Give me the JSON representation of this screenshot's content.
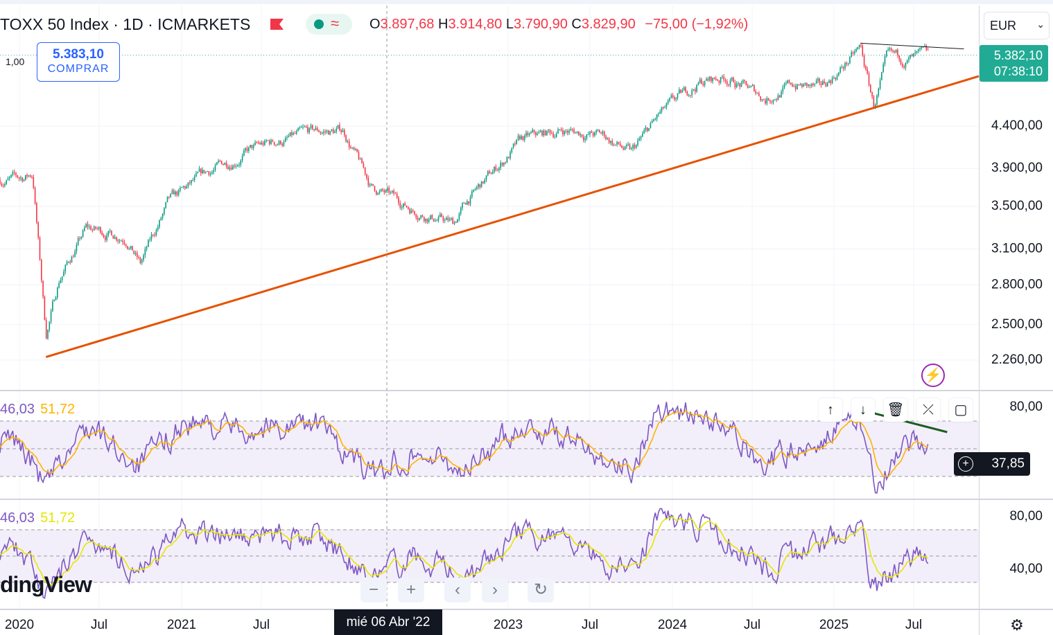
{
  "header": {
    "symbol": "TOXX 50 Index · 1D · ICMARKETS",
    "ohlc": [
      {
        "k": "O",
        "v": "3.897,68"
      },
      {
        "k": "H",
        "v": "3.914,80"
      },
      {
        "k": "L",
        "v": "3.790,90"
      },
      {
        "k": "C",
        "v": "3.829,90"
      }
    ],
    "change": "−75,00 (−1,92%)"
  },
  "scale_badge": "1,00",
  "buy_button": {
    "price": "5.383,10",
    "label": "COMPRAR"
  },
  "currency": {
    "label": "EUR",
    "caret": "⌄"
  },
  "last_price": {
    "price": "5.382,10",
    "countdown": "07:38:10"
  },
  "rsi_value_badge": "37,85",
  "pane1_labels": {
    "a": "46,03",
    "b": "51,72"
  },
  "pane2_labels": {
    "a": "46,03",
    "b": "51,72"
  },
  "watermark": "dingView",
  "crosshair_date": "mié 06 Abr '22",
  "toolbar_icons": [
    "arrow-up-icon",
    "arrow-down-icon",
    "trash-icon",
    "collapse-icon",
    "maximize-icon"
  ],
  "colors": {
    "up": "#089981",
    "down": "#f23645",
    "trendline": "#e65100",
    "rsi": "#7e57c2",
    "rsi_ma1": "#ffb300",
    "rsi_ma2": "#e6e600",
    "rsi_band": "#f3effa",
    "last_price": "#22ab94"
  },
  "chart_data": [
    {
      "type": "candlestick",
      "symbol": "TOXX 50 Index",
      "interval": "1D",
      "x_ticks": [
        "2020",
        "Jul",
        "2021",
        "Jul",
        "2023",
        "Jul",
        "2024",
        "Jul",
        "2025",
        "Jul"
      ],
      "y_ticks": [
        "2.260,00",
        "2.500,00",
        "2.800,00",
        "3.100,00",
        "3.500,00",
        "3.900,00",
        "4.400,00"
      ],
      "ylim": [
        2150,
        5900
      ],
      "y_scale": "log",
      "x": [
        "2020-01",
        "2020-02",
        "2020-03",
        "2020-04",
        "2020-06",
        "2020-09",
        "2020-10",
        "2020-12",
        "2021-03",
        "2021-06",
        "2021-08",
        "2021-11",
        "2022-01",
        "2022-03",
        "2022-06",
        "2022-09",
        "2022-10",
        "2023-02",
        "2023-05",
        "2023-08",
        "2023-10",
        "2023-12",
        "2024-03",
        "2024-05",
        "2024-08",
        "2024-10",
        "2024-12",
        "2025-03",
        "2025-04",
        "2025-05",
        "2025-08"
      ],
      "close": [
        3780,
        3840,
        2430,
        2850,
        3280,
        3220,
        2970,
        3520,
        3850,
        4100,
        4200,
        4320,
        4340,
        3700,
        3480,
        3330,
        3550,
        4220,
        4350,
        4280,
        4060,
        4520,
        4980,
        5060,
        4760,
        4950,
        4880,
        5480,
        4650,
        5300,
        5340
      ],
      "trendlines": [
        {
          "from": [
            "2020-03",
            2280
          ],
          "to": [
            "2025-10",
            5070
          ]
        },
        {
          "from": [
            "2025-03",
            5570
          ],
          "to": [
            "2025-10",
            5480
          ]
        }
      ]
    },
    {
      "type": "line",
      "name": "RSI",
      "y_ticks": [
        "80,00"
      ],
      "ylim": [
        20,
        90
      ],
      "bands": [
        30,
        50,
        70
      ],
      "x": [
        "2020-01",
        "2020-03",
        "2020-06",
        "2020-10",
        "2021-01",
        "2021-06",
        "2021-11",
        "2022-03",
        "2022-06",
        "2022-10",
        "2023-02",
        "2023-06",
        "2023-10",
        "2023-12",
        "2024-04",
        "2024-08",
        "2024-12",
        "2025-03",
        "2025-04",
        "2025-07"
      ],
      "rsi": [
        55,
        22,
        66,
        38,
        68,
        64,
        68,
        30,
        48,
        35,
        68,
        55,
        35,
        81,
        70,
        40,
        58,
        70,
        25,
        52
      ],
      "ma": [
        52,
        35,
        58,
        45,
        60,
        60,
        62,
        44,
        48,
        42,
        62,
        56,
        42,
        70,
        64,
        48,
        54,
        64,
        40,
        50
      ],
      "trendline": {
        "from": [
          "2025-02",
          78
        ],
        "to": [
          "2025-09",
          62
        ]
      }
    },
    {
      "type": "line",
      "name": "RSI",
      "y_ticks": [
        "80,00",
        "40,00"
      ],
      "ylim": [
        20,
        85
      ],
      "bands": [
        30,
        50,
        70
      ],
      "x": [
        "2020-01",
        "2020-03",
        "2020-06",
        "2020-10",
        "2021-01",
        "2021-06",
        "2021-11",
        "2022-03",
        "2022-06",
        "2022-10",
        "2023-02",
        "2023-06",
        "2023-10",
        "2023-12",
        "2024-04",
        "2024-08",
        "2024-12",
        "2025-03",
        "2025-04",
        "2025-07"
      ],
      "rsi": [
        55,
        22,
        66,
        38,
        68,
        64,
        68,
        30,
        48,
        35,
        68,
        55,
        35,
        81,
        70,
        40,
        58,
        70,
        25,
        52
      ],
      "ma": [
        52,
        35,
        58,
        45,
        60,
        60,
        62,
        44,
        48,
        42,
        62,
        56,
        42,
        70,
        64,
        48,
        54,
        64,
        40,
        50
      ]
    }
  ]
}
